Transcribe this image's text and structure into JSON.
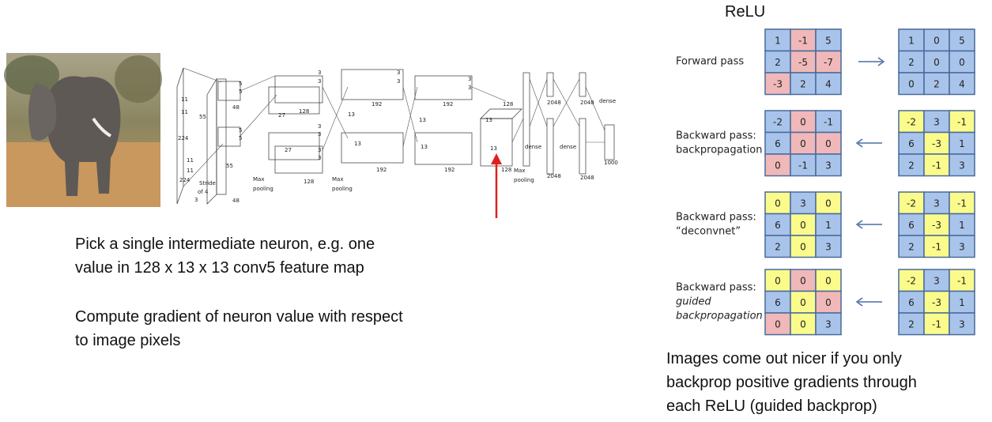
{
  "left_text": {
    "pick": [
      "Pick a single intermediate neuron, e.g. one",
      "value in 128 x 13 x 13 conv5 feature map"
    ],
    "compute": [
      "Compute gradient of neuron value with respect",
      "to image pixels"
    ]
  },
  "network": {
    "labels": [
      "11",
      "11",
      "224",
      "224",
      "3",
      "11",
      "11",
      "Stride",
      "of 4",
      "55",
      "55",
      "48",
      "48",
      "5",
      "5",
      "5",
      "5",
      "27",
      "27",
      "128",
      "128",
      "Max",
      "pooling",
      "Max",
      "pooling",
      "13",
      "13",
      "192",
      "192",
      "13",
      "13",
      "192",
      "192",
      "13",
      "13",
      "128",
      "128",
      "Max",
      "pooling",
      "dense",
      "dense",
      "dense",
      "2048",
      "2048",
      "2048",
      "2048",
      "1000",
      "3",
      "3",
      "3",
      "3",
      "3",
      "3",
      "3",
      "3",
      "3",
      "3"
    ]
  },
  "relu": {
    "title": "ReLU",
    "rows": [
      {
        "label": [
          "Forward pass"
        ],
        "italic": false,
        "arrow": "right",
        "left": {
          "values": [
            [
              1,
              -1,
              5
            ],
            [
              2,
              -5,
              -7
            ],
            [
              -3,
              2,
              4
            ]
          ],
          "colors": [
            [
              "#a9c4ea",
              "#f0b8b8",
              "#a9c4ea"
            ],
            [
              "#a9c4ea",
              "#f0b8b8",
              "#f0b8b8"
            ],
            [
              "#f0b8b8",
              "#a9c4ea",
              "#a9c4ea"
            ]
          ]
        },
        "right": {
          "values": [
            [
              1,
              0,
              5
            ],
            [
              2,
              0,
              0
            ],
            [
              0,
              2,
              4
            ]
          ],
          "colors": [
            [
              "#a9c4ea",
              "#a9c4ea",
              "#a9c4ea"
            ],
            [
              "#a9c4ea",
              "#a9c4ea",
              "#a9c4ea"
            ],
            [
              "#a9c4ea",
              "#a9c4ea",
              "#a9c4ea"
            ]
          ]
        }
      },
      {
        "label": [
          "Backward pass:",
          "backpropagation"
        ],
        "italic": false,
        "arrow": "left",
        "left": {
          "values": [
            [
              -2,
              0,
              -1
            ],
            [
              6,
              0,
              0
            ],
            [
              0,
              -1,
              3
            ]
          ],
          "colors": [
            [
              "#a9c4ea",
              "#f0b8b8",
              "#a9c4ea"
            ],
            [
              "#a9c4ea",
              "#f0b8b8",
              "#f0b8b8"
            ],
            [
              "#f0b8b8",
              "#a9c4ea",
              "#a9c4ea"
            ]
          ]
        },
        "right": {
          "values": [
            [
              -2,
              3,
              -1
            ],
            [
              6,
              -3,
              1
            ],
            [
              2,
              -1,
              3
            ]
          ],
          "colors": [
            [
              "#fbfb8c",
              "#a9c4ea",
              "#fbfb8c"
            ],
            [
              "#a9c4ea",
              "#fbfb8c",
              "#a9c4ea"
            ],
            [
              "#a9c4ea",
              "#fbfb8c",
              "#a9c4ea"
            ]
          ]
        }
      },
      {
        "label": [
          "Backward pass:",
          "“deconvnet”"
        ],
        "italic": false,
        "arrow": "left",
        "left": {
          "values": [
            [
              0,
              3,
              0
            ],
            [
              6,
              0,
              1
            ],
            [
              2,
              0,
              3
            ]
          ],
          "colors": [
            [
              "#fbfb8c",
              "#a9c4ea",
              "#fbfb8c"
            ],
            [
              "#a9c4ea",
              "#fbfb8c",
              "#a9c4ea"
            ],
            [
              "#a9c4ea",
              "#fbfb8c",
              "#a9c4ea"
            ]
          ]
        },
        "right": {
          "values": [
            [
              -2,
              3,
              -1
            ],
            [
              6,
              -3,
              1
            ],
            [
              2,
              -1,
              3
            ]
          ],
          "colors": [
            [
              "#fbfb8c",
              "#a9c4ea",
              "#fbfb8c"
            ],
            [
              "#a9c4ea",
              "#fbfb8c",
              "#a9c4ea"
            ],
            [
              "#a9c4ea",
              "#fbfb8c",
              "#a9c4ea"
            ]
          ]
        }
      },
      {
        "label": [
          "Backward pass:",
          "guided",
          "backpropagation"
        ],
        "italic": true,
        "arrow": "left",
        "left": {
          "values": [
            [
              0,
              0,
              0
            ],
            [
              6,
              0,
              0
            ],
            [
              0,
              0,
              3
            ]
          ],
          "colors": [
            [
              "#fbfb8c",
              "#f0b8b8",
              "#fbfb8c"
            ],
            [
              "#a9c4ea",
              "#fbfb8c",
              "#f0b8b8"
            ],
            [
              "#f0b8b8",
              "#fbfb8c",
              "#a9c4ea"
            ]
          ]
        },
        "right": {
          "values": [
            [
              -2,
              3,
              -1
            ],
            [
              6,
              -3,
              1
            ],
            [
              2,
              -1,
              3
            ]
          ],
          "colors": [
            [
              "#fbfb8c",
              "#a9c4ea",
              "#fbfb8c"
            ],
            [
              "#a9c4ea",
              "#fbfb8c",
              "#a9c4ea"
            ],
            [
              "#a9c4ea",
              "#fbfb8c",
              "#a9c4ea"
            ]
          ]
        }
      }
    ],
    "caption": [
      "Images come out nicer if you only",
      "backprop positive gradients through",
      "each ReLU (guided backprop)"
    ]
  }
}
